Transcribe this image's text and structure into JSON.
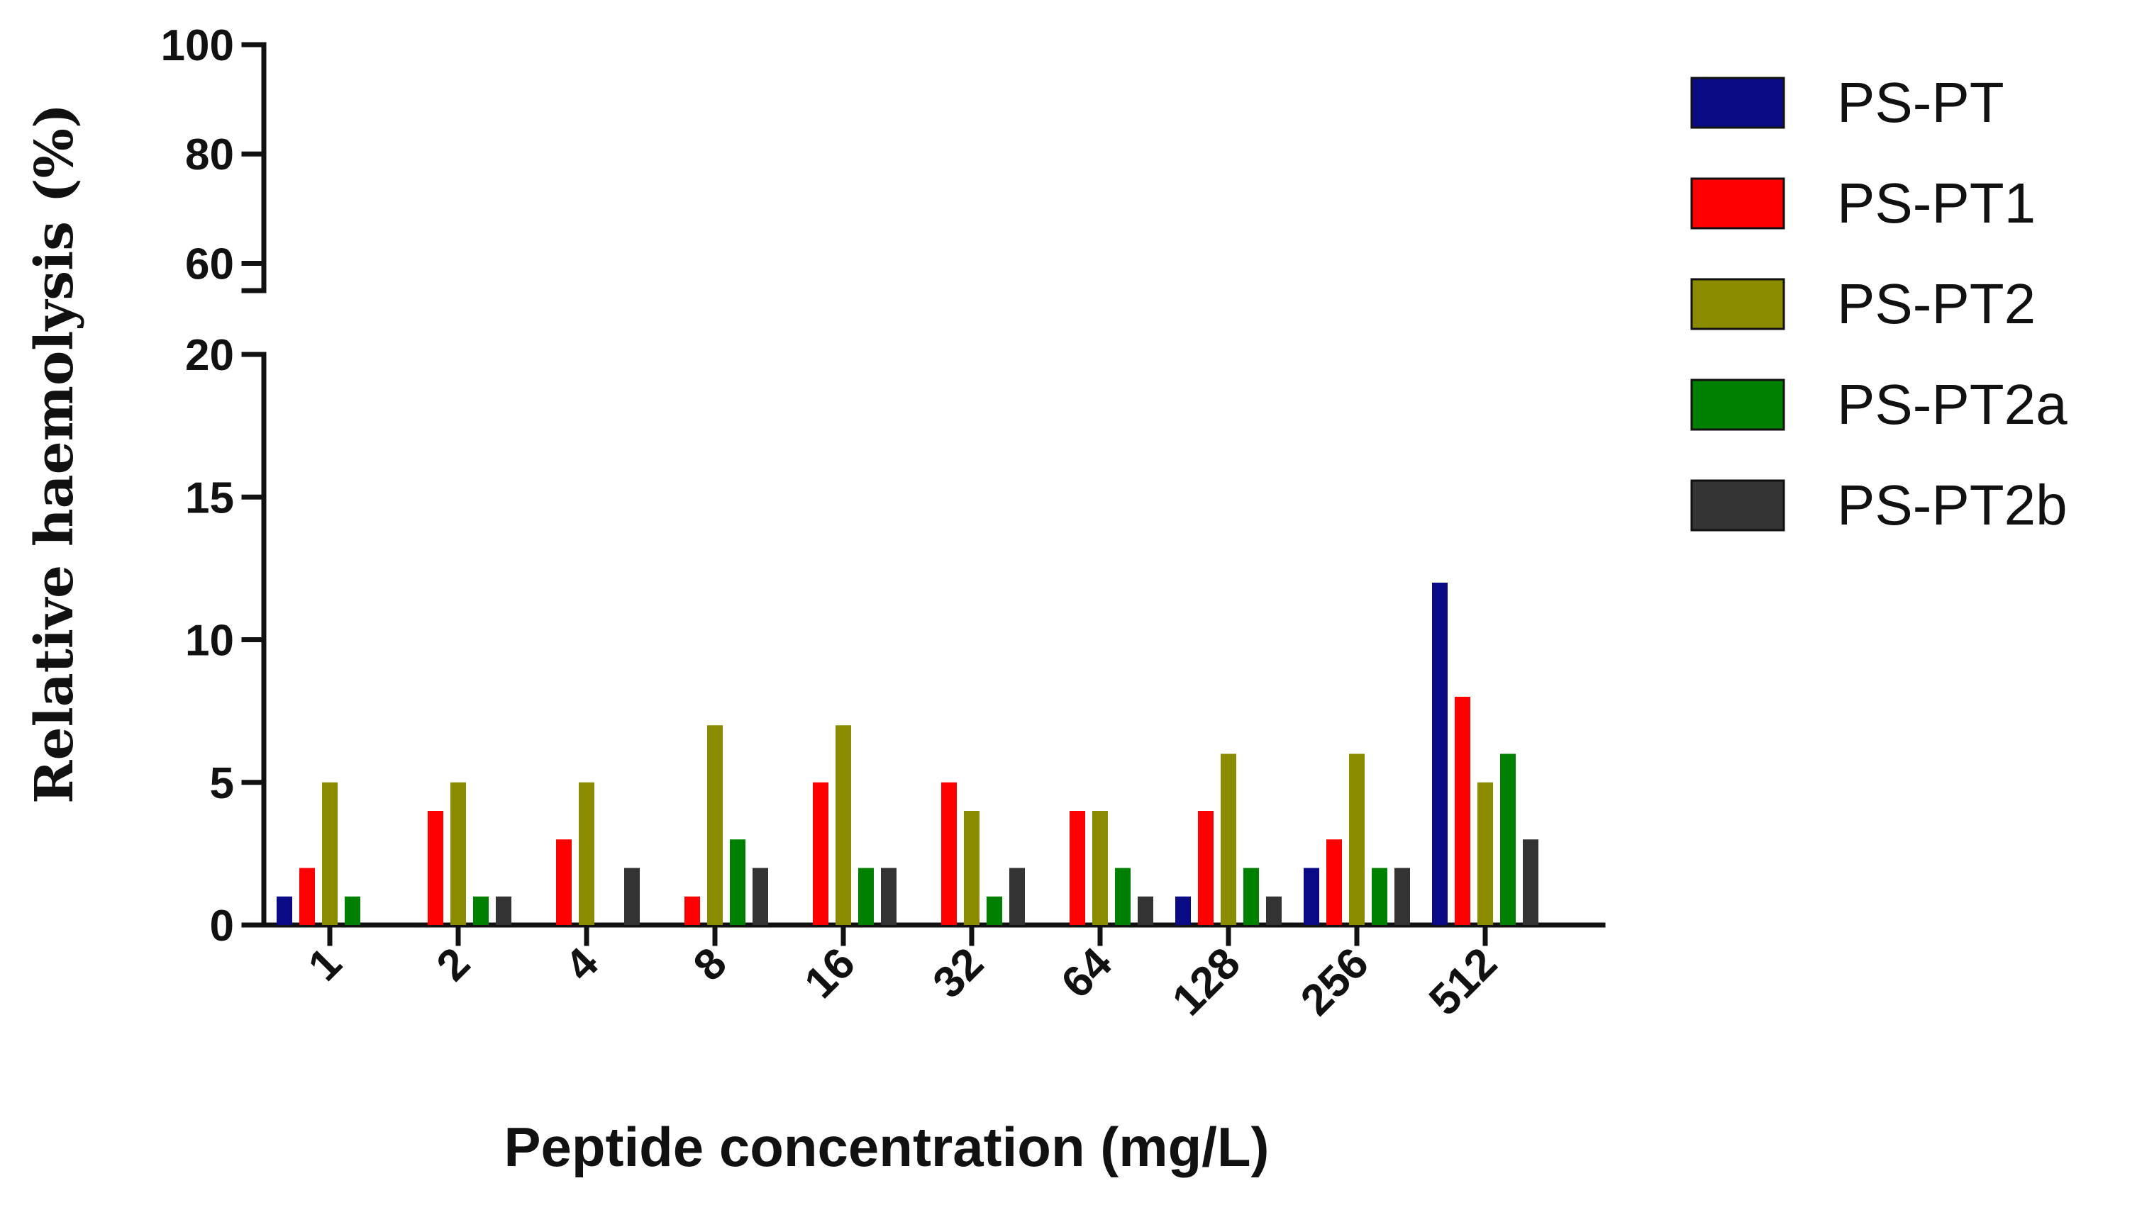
{
  "chart_data": {
    "type": "bar",
    "title": "",
    "xlabel": "Peptide concentration (mg/L)",
    "ylabel": "Relative haemolysis (%)",
    "categories": [
      "1",
      "2",
      "4",
      "8",
      "16",
      "32",
      "64",
      "128",
      "256",
      "512"
    ],
    "series": [
      {
        "name": "PS-PT",
        "color": "#0a0a85",
        "values": [
          1,
          0,
          0,
          0,
          0,
          0,
          0,
          1,
          2,
          12
        ]
      },
      {
        "name": "PS-PT1",
        "color": "#ff0000",
        "values": [
          2,
          4,
          3,
          1,
          5,
          5,
          4,
          4,
          3,
          8
        ]
      },
      {
        "name": "PS-PT2",
        "color": "#8b8b00",
        "values": [
          5,
          5,
          5,
          7,
          7,
          4,
          4,
          6,
          6,
          5
        ]
      },
      {
        "name": "PS-PT2a",
        "color": "#008000",
        "values": [
          1,
          1,
          0,
          3,
          2,
          1,
          2,
          2,
          2,
          6
        ]
      },
      {
        "name": "PS-PT2b",
        "color": "#333333",
        "values": [
          0,
          1,
          2,
          2,
          2,
          2,
          1,
          1,
          2,
          3
        ]
      }
    ],
    "y_axis": {
      "break": true,
      "lower_segment": {
        "range": [
          0,
          20
        ],
        "ticks": [
          "0",
          "5",
          "10",
          "15",
          "20"
        ]
      },
      "upper_segment": {
        "range": [
          55,
          100
        ],
        "ticks": [
          "60",
          "80",
          "100"
        ]
      }
    },
    "grid": false,
    "legend_position": "right"
  }
}
